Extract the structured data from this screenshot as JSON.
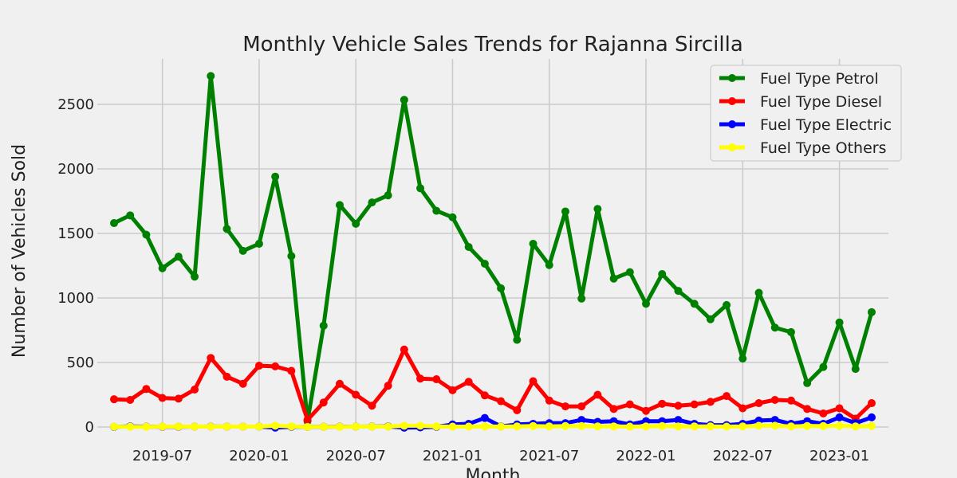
{
  "chart_data": {
    "type": "line",
    "title": "Monthly Vehicle Sales Trends for Rajanna Sircilla",
    "xlabel": "Month",
    "ylabel": "Number of Vehicles Sold",
    "x": [
      "2019-04",
      "2019-05",
      "2019-06",
      "2019-07",
      "2019-08",
      "2019-09",
      "2019-10",
      "2019-11",
      "2019-12",
      "2020-01",
      "2020-02",
      "2020-03",
      "2020-04",
      "2020-05",
      "2020-06",
      "2020-07",
      "2020-08",
      "2020-09",
      "2020-10",
      "2020-11",
      "2020-12",
      "2021-01",
      "2021-02",
      "2021-03",
      "2021-04",
      "2021-05",
      "2021-06",
      "2021-07",
      "2021-08",
      "2021-09",
      "2021-10",
      "2021-11",
      "2021-12",
      "2022-01",
      "2022-02",
      "2022-03",
      "2022-04",
      "2022-05",
      "2022-06",
      "2022-07",
      "2022-08",
      "2022-09",
      "2022-10",
      "2022-11",
      "2022-12",
      "2023-01",
      "2023-02",
      "2023-03"
    ],
    "xticks": [
      "2019-07",
      "2020-01",
      "2020-07",
      "2021-01",
      "2021-07",
      "2022-01",
      "2022-07",
      "2023-01"
    ],
    "yticks": [
      0,
      500,
      1000,
      1500,
      2000,
      2500
    ],
    "ylim": [
      -20,
      2850
    ],
    "grid": true,
    "legend_position": "top-right",
    "series": [
      {
        "name": "Fuel Type Petrol",
        "color": "#008000",
        "values": [
          1580,
          1640,
          1490,
          1230,
          1320,
          1165,
          2720,
          1535,
          1365,
          1420,
          1940,
          1325,
          45,
          785,
          1720,
          1575,
          1740,
          1795,
          2535,
          1850,
          1675,
          1625,
          1395,
          1265,
          1075,
          675,
          1420,
          1255,
          1670,
          995,
          1690,
          1150,
          1200,
          955,
          1185,
          1055,
          955,
          835,
          945,
          530,
          1040,
          770,
          735,
          340,
          465,
          810,
          450,
          890
        ]
      },
      {
        "name": "Fuel Type Diesel",
        "color": "#ff0000",
        "values": [
          215,
          210,
          295,
          225,
          220,
          290,
          535,
          390,
          335,
          475,
          470,
          435,
          55,
          190,
          335,
          250,
          165,
          320,
          600,
          375,
          370,
          285,
          350,
          245,
          200,
          130,
          355,
          205,
          160,
          160,
          250,
          140,
          175,
          125,
          180,
          165,
          175,
          195,
          240,
          145,
          185,
          210,
          205,
          140,
          105,
          145,
          65,
          185
        ]
      },
      {
        "name": "Fuel Type Electric",
        "color": "#0000ff",
        "values": [
          2,
          5,
          3,
          2,
          2,
          3,
          4,
          3,
          3,
          3,
          -5,
          2,
          1,
          2,
          3,
          3,
          4,
          5,
          -5,
          -3,
          2,
          20,
          25,
          70,
          5,
          20,
          25,
          30,
          30,
          55,
          40,
          45,
          20,
          45,
          45,
          55,
          25,
          15,
          15,
          25,
          50,
          55,
          25,
          45,
          25,
          75,
          30,
          75
        ]
      },
      {
        "name": "Fuel Type Others",
        "color": "#ffff00",
        "values": [
          3,
          2,
          2,
          3,
          3,
          3,
          3,
          3,
          3,
          3,
          10,
          5,
          1,
          2,
          2,
          3,
          3,
          3,
          10,
          10,
          5,
          3,
          3,
          5,
          3,
          5,
          8,
          5,
          8,
          8,
          5,
          5,
          3,
          5,
          8,
          5,
          5,
          5,
          3,
          5,
          10,
          10,
          5,
          8,
          8,
          10,
          5,
          8
        ]
      }
    ]
  }
}
